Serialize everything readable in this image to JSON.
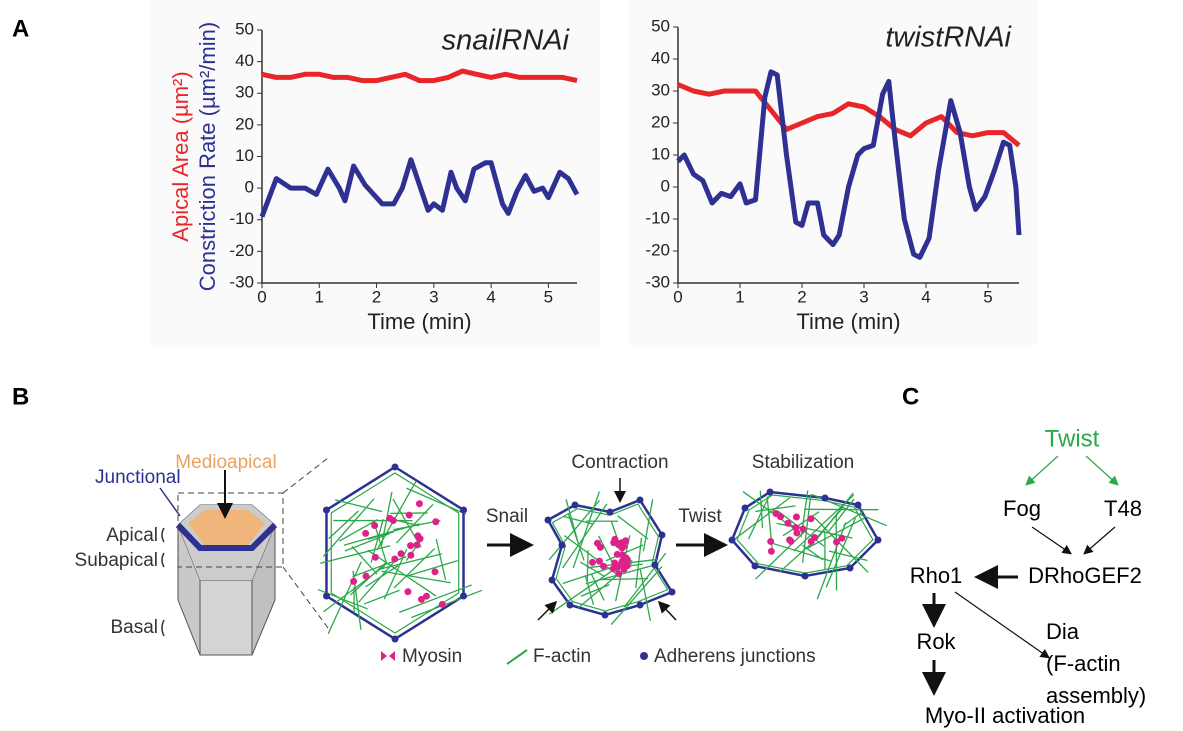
{
  "panel_a": {
    "label": "A"
  },
  "chart_data": [
    {
      "type": "line",
      "title": "snailRNAi",
      "xlabel": "Time (min)",
      "ylabel_parts": [
        {
          "text": "Apical Area (µm²)",
          "color": "#e8262a"
        },
        {
          "text": "Constriction Rate (µm²/min)",
          "color": "#2e3192"
        }
      ],
      "xlim": [
        0,
        5.5
      ],
      "ylim": [
        -30,
        50
      ],
      "xticks": [
        0,
        1,
        2,
        3,
        4,
        5
      ],
      "yticks": [
        -30,
        -20,
        -10,
        0,
        10,
        20,
        30,
        40,
        50
      ],
      "series": [
        {
          "color": "#e8262a",
          "x": [
            0,
            0.25,
            0.5,
            0.75,
            1,
            1.25,
            1.5,
            1.75,
            2,
            2.25,
            2.5,
            2.75,
            3,
            3.25,
            3.5,
            3.75,
            4,
            4.25,
            4.5,
            4.75,
            5,
            5.25,
            5.5
          ],
          "values": [
            36,
            35,
            35,
            36,
            36,
            35,
            35,
            34,
            34,
            35,
            36,
            34,
            34,
            35,
            37,
            36,
            35,
            36,
            35,
            35,
            35,
            35,
            34
          ]
        },
        {
          "color": "#2e3192",
          "x": [
            0,
            0.25,
            0.5,
            0.75,
            0.95,
            1.15,
            1.35,
            1.45,
            1.6,
            1.8,
            2.1,
            2.3,
            2.45,
            2.6,
            2.75,
            2.9,
            3.0,
            3.15,
            3.3,
            3.4,
            3.55,
            3.7,
            3.9,
            4.0,
            4.2,
            4.3,
            4.45,
            4.6,
            4.75,
            4.9,
            5.0,
            5.2,
            5.35,
            5.5
          ],
          "values": [
            -9,
            3,
            0,
            0,
            -2,
            6,
            0,
            -4,
            7,
            1,
            -5,
            -5,
            0,
            9,
            1,
            -7,
            -5,
            -7,
            5,
            0,
            -4,
            6,
            8,
            8,
            -5,
            -8,
            -1,
            4,
            -1,
            0,
            -3,
            5,
            3,
            -2
          ]
        }
      ]
    },
    {
      "type": "line",
      "title": "twistRNAi",
      "xlabel": "Time (min)",
      "xlim": [
        0,
        5.5
      ],
      "ylim": [
        -30,
        50
      ],
      "xticks": [
        0,
        1,
        2,
        3,
        4,
        5
      ],
      "yticks": [
        -30,
        -20,
        -10,
        0,
        10,
        20,
        30,
        40,
        50
      ],
      "series": [
        {
          "color": "#e8262a",
          "x": [
            0,
            0.25,
            0.5,
            0.75,
            1,
            1.25,
            1.5,
            1.75,
            2,
            2.25,
            2.5,
            2.75,
            3,
            3.25,
            3.5,
            3.75,
            4,
            4.25,
            4.5,
            4.75,
            5,
            5.25,
            5.5
          ],
          "values": [
            32,
            30,
            29,
            30,
            30,
            30,
            24,
            18,
            20,
            22,
            23,
            26,
            25,
            22,
            18,
            16,
            20,
            22,
            17,
            16,
            17,
            17,
            13
          ]
        },
        {
          "color": "#2e3192",
          "x": [
            0,
            0.1,
            0.25,
            0.4,
            0.55,
            0.7,
            0.85,
            1.0,
            1.1,
            1.25,
            1.4,
            1.5,
            1.6,
            1.75,
            1.9,
            2.0,
            2.1,
            2.25,
            2.35,
            2.5,
            2.6,
            2.75,
            2.9,
            3.0,
            3.15,
            3.3,
            3.4,
            3.5,
            3.65,
            3.8,
            3.9,
            4.05,
            4.2,
            4.4,
            4.55,
            4.7,
            4.8,
            4.95,
            5.1,
            5.25,
            5.35,
            5.45,
            5.5
          ],
          "values": [
            8,
            10,
            4,
            2,
            -5,
            -2,
            -3,
            1,
            -5,
            -4,
            28,
            36,
            35,
            10,
            -11,
            -12,
            -5,
            -5,
            -15,
            -18,
            -15,
            0,
            10,
            12,
            13,
            29,
            33,
            15,
            -10,
            -21,
            -22,
            -16,
            5,
            27,
            17,
            0,
            -7,
            -3,
            5,
            14,
            13,
            0,
            -15
          ]
        }
      ]
    }
  ],
  "panel_b": {
    "label": "B",
    "junctional": "Junctional",
    "medioapical": "Medioapical",
    "apical": "Apical",
    "subapical": "Subapical",
    "basal": "Basal",
    "snail": "Snail",
    "twist": "Twist",
    "contraction": "Contraction",
    "stabilization": "Stabilization",
    "legend": [
      "Myosin",
      "F-actin",
      "Adherens junctions"
    ]
  },
  "panel_c": {
    "label": "C",
    "twist": "Twist",
    "fog": "Fog",
    "t48": "T48",
    "drhogef2": "DRhoGEF2",
    "rho1": "Rho1",
    "dia": [
      "Dia",
      "(F-actin",
      "assembly)"
    ],
    "rok": "Rok",
    "myo": "Myo-II activation"
  }
}
